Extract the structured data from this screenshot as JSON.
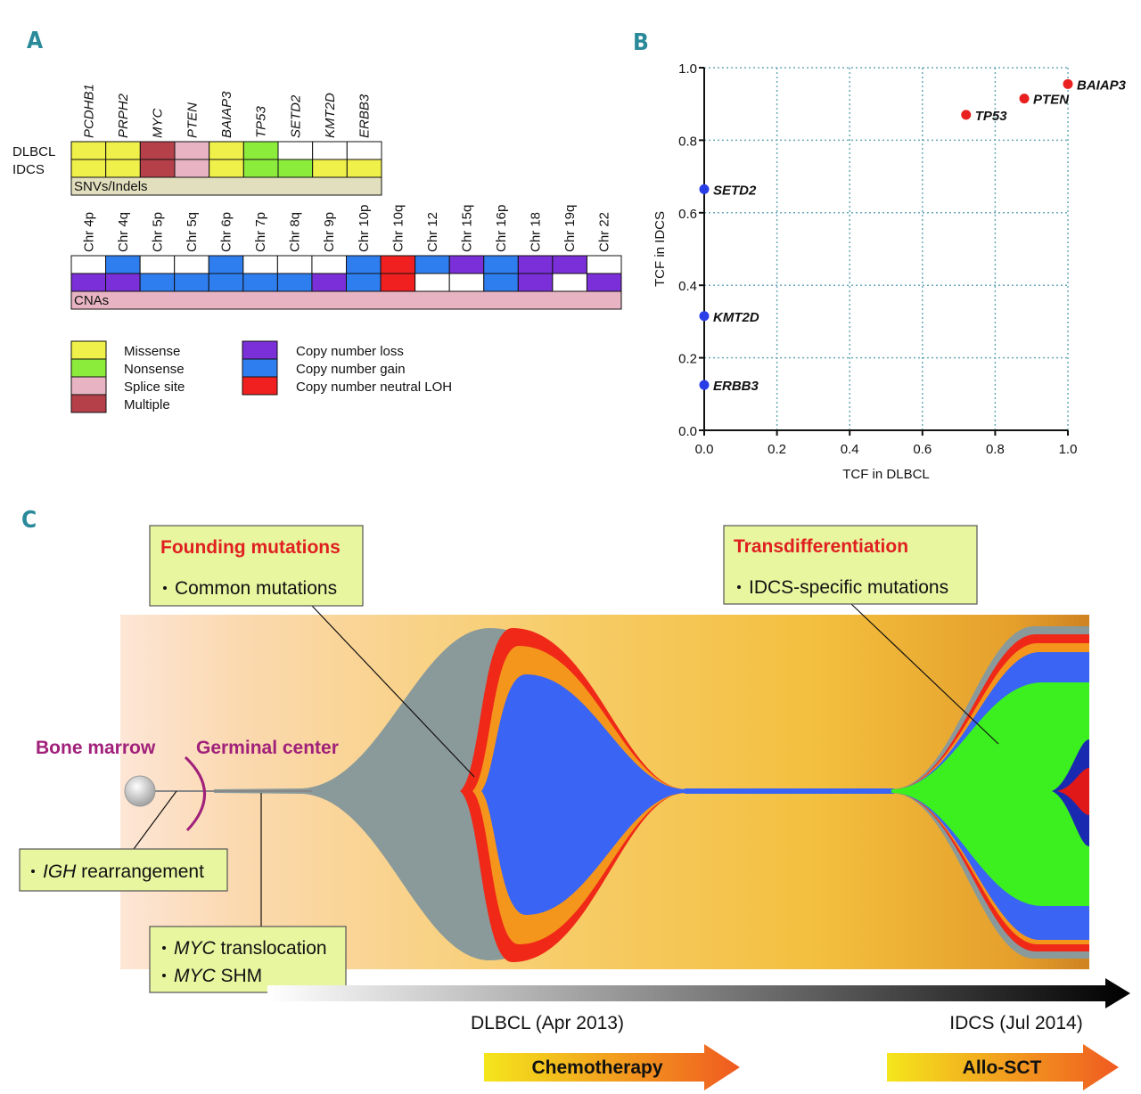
{
  "panel_a": {
    "label": "A",
    "snv": {
      "columns": [
        "PCDHB1",
        "PRPH2",
        "MYC",
        "PTEN",
        "BAIAP3",
        "TP53",
        "SETD2",
        "KMT2D",
        "ERBB3"
      ],
      "rows": [
        "DLBCL",
        "IDCS"
      ],
      "cells": [
        [
          "#f0f04a",
          "#f0f04a",
          "#b5404a",
          "#e8b4c4",
          "#f0f04a",
          "#8cec3c",
          "#ffffff",
          "#ffffff",
          "#ffffff"
        ],
        [
          "#f0f04a",
          "#f0f04a",
          "#b5404a",
          "#e8b4c4",
          "#f0f04a",
          "#8cec3c",
          "#8cec3c",
          "#f0f04a",
          "#f0f04a"
        ]
      ],
      "caption": "SNVs/Indels",
      "caption_color": "#e2dfbe"
    },
    "cna": {
      "columns": [
        "Chr 4p",
        "Chr 4q",
        "Chr 5p",
        "Chr 5q",
        "Chr 6p",
        "Chr 7p",
        "Chr 8q",
        "Chr 9p",
        "Chr 10p",
        "Chr 10q",
        "Chr 12",
        "Chr 15q",
        "Chr 16p",
        "Chr 18",
        "Chr 19q",
        "Chr 22"
      ],
      "cells": [
        [
          "#ffffff",
          "#2f7ef0",
          "#ffffff",
          "#ffffff",
          "#2f7ef0",
          "#ffffff",
          "#ffffff",
          "#ffffff",
          "#2f7ef0",
          "#f02020",
          "#2f7ef0",
          "#7a2fd8",
          "#2f7ef0",
          "#7a2fd8",
          "#7a2fd8",
          "#ffffff"
        ],
        [
          "#7a2fd8",
          "#7a2fd8",
          "#2f7ef0",
          "#2f7ef0",
          "#2f7ef0",
          "#2f7ef0",
          "#2f7ef0",
          "#7a2fd8",
          "#2f7ef0",
          "#f02020",
          "#ffffff",
          "#ffffff",
          "#2f7ef0",
          "#7a2fd8",
          "#ffffff",
          "#7a2fd8"
        ]
      ],
      "caption": "CNAs",
      "caption_color": "#e8b4c4"
    },
    "legend_snv": [
      {
        "label": "Missense",
        "color": "#f0f04a"
      },
      {
        "label": "Nonsense",
        "color": "#8cec3c"
      },
      {
        "label": "Splice site",
        "color": "#e8b4c4"
      },
      {
        "label": "Multiple",
        "color": "#b5404a"
      }
    ],
    "legend_cna": [
      {
        "label": "Copy number loss",
        "color": "#7a2fd8"
      },
      {
        "label": "Copy number gain",
        "color": "#2f7ef0"
      },
      {
        "label": "Copy number neutral LOH",
        "color": "#f02020"
      }
    ]
  },
  "chart_data": {
    "type": "scatter",
    "panel_label": "B",
    "x_label": "TCF in DLBCL",
    "y_label": "TCF in IDCS",
    "labels": [
      "BAIAP3",
      "PTEN",
      "TP53",
      "SETD2",
      "KMT2D",
      "ERBB3"
    ],
    "x": [
      1.0,
      0.88,
      0.72,
      0.0,
      0.0,
      0.0
    ],
    "values": [
      0.955,
      0.915,
      0.87,
      0.665,
      0.315,
      0.125
    ],
    "colors": [
      "#e82020",
      "#e82020",
      "#e82020",
      "#2a3ee8",
      "#2a3ee8",
      "#2a3ee8"
    ],
    "xlim": [
      0,
      1
    ],
    "ylim": [
      0,
      1
    ],
    "xticks": [
      {
        "value": 0,
        "label": "0.0"
      },
      {
        "value": 0.2,
        "label": "0.2"
      },
      {
        "value": 0.4,
        "label": "0.4"
      },
      {
        "value": 0.6,
        "label": "0.6"
      },
      {
        "value": 0.8,
        "label": "0.8"
      },
      {
        "value": 1,
        "label": "1.0"
      }
    ],
    "yticks": [
      {
        "value": 0,
        "label": "0.0"
      },
      {
        "value": 0.2,
        "label": "0.2"
      },
      {
        "value": 0.4,
        "label": "0.4"
      },
      {
        "value": 0.6,
        "label": "0.6"
      },
      {
        "value": 0.8,
        "label": "0.8"
      },
      {
        "value": 1,
        "label": "1.0"
      }
    ],
    "grid": true
  },
  "panel_c": {
    "label": "C",
    "stage_labels": [
      "Bone marrow",
      "Germinal center"
    ],
    "founding": {
      "title": "Founding mutations",
      "items": [
        "Common mutations"
      ]
    },
    "transdiff": {
      "title": "Transdifferentiation",
      "items": [
        "IDCS-specific mutations"
      ]
    },
    "igh": [
      {
        "italic": "IGH",
        "text": " rearrangement"
      }
    ],
    "myc": [
      {
        "italic": "MYC",
        "text": " translocation"
      },
      {
        "italic": "MYC",
        "text": " SHM"
      }
    ],
    "timepoints": [
      "DLBCL (Apr 2013)",
      "IDCS (Jul 2014)"
    ],
    "treatments": [
      "Chemotherapy",
      "Allo-SCT"
    ]
  }
}
